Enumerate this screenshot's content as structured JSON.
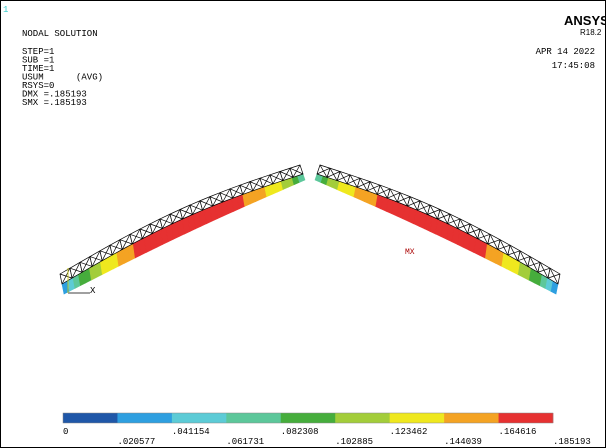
{
  "window_number": "1",
  "info": {
    "lines": [
      "NODAL SOLUTION",
      "STEP=1",
      "SUB =1",
      "TIME=1",
      "USUM      (AVG)",
      "RSYS=0",
      "DMX =.185193",
      "SMX =.185193"
    ]
  },
  "brand": {
    "name": "ANSYS",
    "version": "R18.2",
    "date": "APR 14 2022",
    "time": "17:45:08"
  },
  "plot": {
    "max_label": "MX",
    "axis_label": "X"
  },
  "legend": {
    "labels": [
      "0",
      ".020577",
      ".041154",
      ".061731",
      ".082308",
      ".102885",
      ".123462",
      ".144039",
      ".164616",
      ".185193"
    ],
    "colors": [
      "#1f57a8",
      "#2e9fe0",
      "#5ccbd6",
      "#5cc79a",
      "#46ad3c",
      "#a3cd3a",
      "#efe81e",
      "#f4a323",
      "#e63131"
    ]
  }
}
